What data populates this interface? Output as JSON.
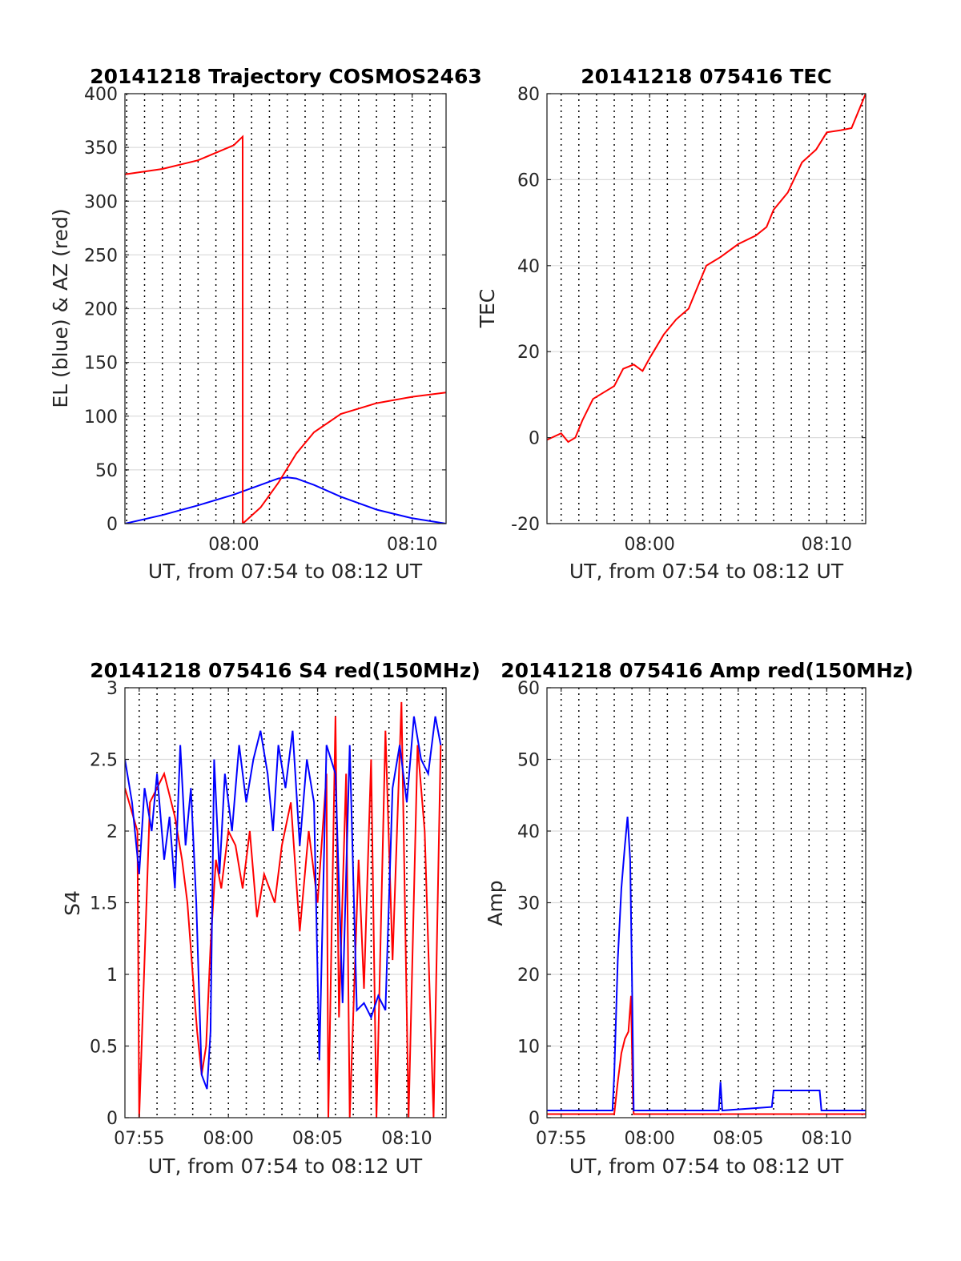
{
  "figure": {
    "date": "20141218",
    "panels_description": "four subplots"
  },
  "chart_data": [
    {
      "id": "trajectory",
      "type": "line",
      "title": "20141218 Trajectory COSMOS2463",
      "xlabel": "UT, from 07:54 to 08:12 UT",
      "ylabel": "EL (blue) & AZ (red)",
      "xlim": [
        -6.1,
        11.9
      ],
      "ylim": [
        0,
        400
      ],
      "xticks": [
        0,
        10
      ],
      "xticklabels": [
        "08:00",
        "08:10"
      ],
      "yticks": [
        0,
        50,
        100,
        150,
        200,
        250,
        300,
        350,
        400
      ],
      "yticklabels": [
        "0",
        "50",
        "100",
        "150",
        "200",
        "250",
        "300",
        "350",
        "400"
      ],
      "grid": true,
      "series": [
        {
          "name": "EL",
          "color": "#0000ff",
          "x": [
            -6.1,
            -4,
            -2,
            0,
            1.5,
            2.5,
            3,
            3.5,
            4.5,
            6,
            8,
            10,
            11.9
          ],
          "y": [
            0,
            8,
            17,
            27,
            36,
            42,
            43,
            42,
            36,
            25,
            13,
            5,
            0
          ]
        },
        {
          "name": "AZ",
          "color": "#ff0000",
          "x": [
            -6.1,
            -4,
            -2,
            0,
            0.5,
            0.501,
            1.5,
            2.5,
            3.5,
            4.5,
            6,
            8,
            10,
            11.9
          ],
          "y": [
            325,
            330,
            338,
            352,
            360,
            0,
            15,
            38,
            65,
            85,
            102,
            112,
            118,
            122
          ]
        }
      ]
    },
    {
      "id": "tec",
      "type": "line",
      "title": "20141218 075416 TEC",
      "xlabel": "UT, from 07:54 to 08:12 UT",
      "ylabel": "TEC",
      "xlim": [
        -5.8,
        12.2
      ],
      "ylim": [
        -20,
        80
      ],
      "xticks": [
        0,
        10
      ],
      "xticklabels": [
        "08:00",
        "08:10"
      ],
      "yticks": [
        -20,
        0,
        20,
        40,
        60,
        80
      ],
      "yticklabels": [
        "-20",
        "0",
        "20",
        "40",
        "60",
        "80"
      ],
      "grid": true,
      "series": [
        {
          "name": "TEC",
          "color": "#ff0000",
          "x": [
            -5.8,
            -5,
            -4.6,
            -4.2,
            -3.8,
            -3.2,
            -2.6,
            -2.0,
            -1.5,
            -0.9,
            -0.4,
            0,
            0.8,
            1.5,
            2.2,
            3.2,
            4.0,
            5.0,
            6.0,
            6.6,
            7.0,
            7.8,
            8.6,
            9.4,
            10.0,
            10.8,
            11.4,
            12.2
          ],
          "y": [
            -0.5,
            1,
            -1,
            0,
            4,
            9,
            10.5,
            12,
            16,
            17,
            15.5,
            18.5,
            24,
            27.5,
            30,
            40,
            42,
            45,
            47,
            49,
            53,
            57,
            64,
            67,
            71,
            71.5,
            72,
            80
          ]
        }
      ]
    },
    {
      "id": "s4",
      "type": "line",
      "title": "20141218 075416 S4 red(150MHz)",
      "xlabel": "UT, from 07:54 to 08:12 UT",
      "ylabel": "S4",
      "xlim": [
        -5.8,
        12.2
      ],
      "ylim": [
        0,
        3
      ],
      "xticks": [
        -5,
        0,
        5,
        10
      ],
      "xticklabels": [
        "07:55",
        "08:00",
        "08:05",
        "08:10"
      ],
      "yticks": [
        0,
        0.5,
        1,
        1.5,
        2,
        2.5,
        3
      ],
      "yticklabels": [
        "0",
        "0.5",
        "1",
        "1.5",
        "2",
        "2.5",
        "3"
      ],
      "grid": true,
      "series": [
        {
          "name": "red",
          "color": "#ff0000",
          "x": [
            -5.8,
            -5.1,
            -5.0,
            -4.4,
            -3.6,
            -3.0,
            -2.6,
            -2.3,
            -2.0,
            -1.75,
            -1.5,
            -1.25,
            -1.0,
            -0.7,
            -0.4,
            0,
            0.4,
            0.8,
            1.2,
            1.6,
            2.0,
            2.6,
            3.0,
            3.5,
            4.0,
            4.5,
            5.0,
            5.5,
            5.6,
            6.0,
            6.2,
            6.6,
            6.8,
            7.3,
            7.6,
            8.0,
            8.3,
            8.8,
            9.2,
            9.7,
            10.1,
            10.6,
            11.0,
            11.5,
            11.9
          ],
          "y": [
            2.3,
            2.0,
            0,
            2.2,
            2.4,
            2.1,
            1.8,
            1.5,
            1.0,
            0.6,
            0.3,
            0.5,
            1.2,
            1.8,
            1.6,
            2.0,
            1.9,
            1.6,
            2.0,
            1.4,
            1.7,
            1.5,
            1.9,
            2.2,
            1.3,
            2.0,
            1.5,
            2.4,
            0,
            2.8,
            0.7,
            2.4,
            0,
            1.8,
            0.9,
            2.5,
            0,
            2.7,
            1.1,
            2.9,
            0,
            2.6,
            2.0,
            0,
            2.6
          ]
        },
        {
          "name": "blue",
          "color": "#0000ff",
          "x": [
            -5.8,
            -5.4,
            -5.0,
            -4.7,
            -4.3,
            -4.0,
            -3.6,
            -3.3,
            -3.0,
            -2.7,
            -2.4,
            -2.1,
            -1.8,
            -1.5,
            -1.2,
            -1.0,
            -0.8,
            -0.5,
            -0.2,
            0.2,
            0.6,
            1.0,
            1.4,
            1.8,
            2.2,
            2.5,
            2.8,
            3.2,
            3.6,
            4.0,
            4.4,
            4.8,
            5.1,
            5.5,
            6.0,
            6.4,
            6.8,
            7.2,
            7.6,
            8.0,
            8.4,
            8.8,
            9.2,
            9.6,
            10.0,
            10.4,
            10.8,
            11.2,
            11.6,
            11.9
          ],
          "y": [
            2.5,
            2.2,
            1.7,
            2.3,
            2.0,
            2.4,
            1.8,
            2.1,
            1.6,
            2.6,
            1.9,
            2.3,
            1.5,
            0.3,
            0.2,
            0.6,
            2.5,
            1.7,
            2.4,
            2.0,
            2.6,
            2.2,
            2.5,
            2.7,
            2.4,
            2.0,
            2.6,
            2.3,
            2.7,
            1.9,
            2.5,
            2.2,
            0.4,
            2.6,
            2.4,
            0.8,
            2.6,
            0.75,
            0.8,
            0.7,
            0.85,
            0.75,
            2.3,
            2.6,
            2.2,
            2.8,
            2.5,
            2.4,
            2.8,
            2.6
          ]
        }
      ]
    },
    {
      "id": "amp",
      "type": "line",
      "title": "20141218 075416 Amp red(150MHz)",
      "xlabel": "UT, from 07:54 to 08:12 UT",
      "ylabel": "Amp",
      "xlim": [
        -5.8,
        12.2
      ],
      "ylim": [
        0,
        60
      ],
      "xticks": [
        -5,
        0,
        5,
        10
      ],
      "xticklabels": [
        "07:55",
        "08:00",
        "08:05",
        "08:10"
      ],
      "yticks": [
        0,
        10,
        20,
        30,
        40,
        50,
        60
      ],
      "yticklabels": [
        "0",
        "10",
        "20",
        "30",
        "40",
        "50",
        "60"
      ],
      "grid": true,
      "series": [
        {
          "name": "red",
          "color": "#ff0000",
          "x": [
            -5.8,
            -2.0,
            -1.8,
            -1.6,
            -1.4,
            -1.2,
            -1.05,
            -0.95,
            -0.9,
            12.2
          ],
          "y": [
            0.5,
            0.5,
            5,
            9,
            11,
            12,
            17,
            3,
            0.5,
            0.5
          ]
        },
        {
          "name": "blue",
          "color": "#0000ff",
          "x": [
            -5.8,
            -2.1,
            -2.0,
            -1.8,
            -1.6,
            -1.4,
            -1.25,
            -1.1,
            -1.0,
            -0.9,
            3.9,
            4.0,
            4.1,
            6.9,
            7.0,
            9.6,
            9.7,
            12.2
          ],
          "y": [
            1,
            1,
            6,
            22,
            32,
            38,
            42,
            36,
            20,
            1,
            1,
            5,
            1,
            1.5,
            3.8,
            3.8,
            1,
            1
          ]
        }
      ]
    }
  ]
}
